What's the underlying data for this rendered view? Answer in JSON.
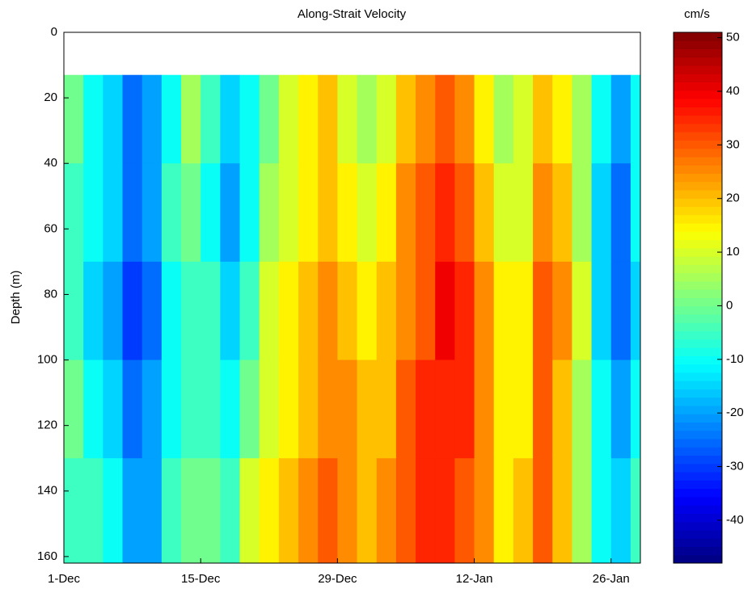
{
  "chart_data": {
    "type": "heatmap",
    "title": "Along-Strait Velocity",
    "ylabel": "Depth (m)",
    "colorbar_label": "cm/s",
    "colormap": "jet",
    "x_bins": [
      0,
      2,
      4,
      6,
      8,
      10,
      12,
      14,
      16,
      18,
      20,
      22,
      24,
      26,
      28,
      30,
      32,
      34,
      36,
      38,
      40,
      42,
      44,
      46,
      48,
      50,
      52,
      54,
      56,
      58,
      59
    ],
    "depth_bins": [
      13,
      40,
      70,
      100,
      130,
      162
    ],
    "values": [
      [
        0,
        -10,
        -15,
        -25,
        -20,
        -10,
        5,
        -5,
        -15,
        -10,
        0,
        10,
        15,
        20,
        10,
        5,
        10,
        20,
        25,
        30,
        25,
        15,
        5,
        10,
        20,
        15,
        5,
        -10,
        -20,
        -10
      ],
      [
        -5,
        -10,
        -15,
        -25,
        -20,
        -5,
        0,
        -10,
        -20,
        -10,
        5,
        10,
        15,
        20,
        15,
        10,
        15,
        25,
        30,
        35,
        30,
        20,
        10,
        10,
        25,
        20,
        5,
        -15,
        -25,
        -10
      ],
      [
        -5,
        -15,
        -20,
        -30,
        -25,
        -10,
        -5,
        -5,
        -15,
        -5,
        10,
        15,
        20,
        25,
        20,
        15,
        20,
        25,
        30,
        40,
        35,
        25,
        15,
        15,
        30,
        25,
        10,
        -15,
        -25,
        -15
      ],
      [
        0,
        -10,
        -15,
        -25,
        -20,
        -10,
        -5,
        -5,
        -10,
        0,
        10,
        15,
        20,
        25,
        25,
        20,
        20,
        30,
        35,
        35,
        35,
        25,
        15,
        15,
        30,
        20,
        5,
        -10,
        -20,
        -10
      ],
      [
        -5,
        -5,
        -10,
        -20,
        -20,
        -5,
        0,
        0,
        -5,
        10,
        15,
        20,
        25,
        30,
        25,
        20,
        25,
        30,
        35,
        35,
        30,
        25,
        15,
        20,
        30,
        20,
        5,
        -10,
        -15,
        -5
      ]
    ],
    "xlim": [
      0,
      59
    ],
    "xticks": [
      {
        "value": 0,
        "label": "1-Dec"
      },
      {
        "value": 14,
        "label": "15-Dec"
      },
      {
        "value": 28,
        "label": "29-Dec"
      },
      {
        "value": 42,
        "label": "12-Jan"
      },
      {
        "value": 56,
        "label": "26-Jan"
      }
    ],
    "ylim": [
      0,
      162
    ],
    "yticks": [
      0,
      20,
      40,
      60,
      80,
      100,
      120,
      140,
      160
    ],
    "y_inverted": true,
    "clim": [
      -48,
      51
    ],
    "cticks": [
      -40,
      -30,
      -20,
      -10,
      0,
      10,
      20,
      30,
      40,
      50
    ]
  }
}
